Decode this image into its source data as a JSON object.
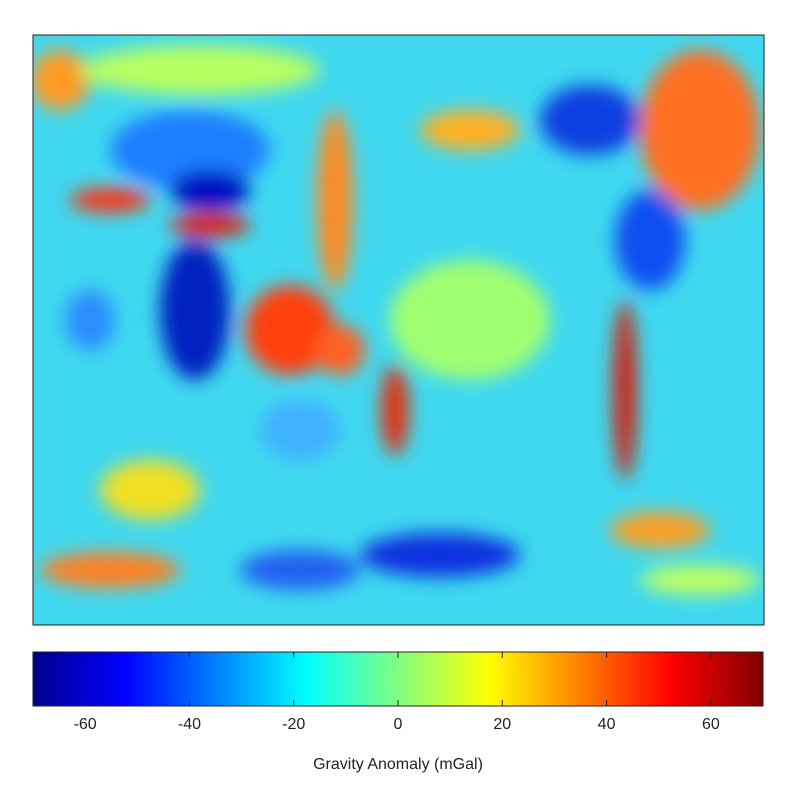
{
  "colorbar": {
    "label": "Gravity Anomaly (mGal)",
    "lim": [
      -70,
      70
    ],
    "ticks": [
      -60,
      -40,
      -20,
      0,
      20,
      40,
      60
    ],
    "colormap": [
      "#00008f",
      "#0000ff",
      "#0080ff",
      "#00ffff",
      "#80ff80",
      "#ffff00",
      "#ff8000",
      "#ff0000",
      "#800000"
    ]
  }
}
